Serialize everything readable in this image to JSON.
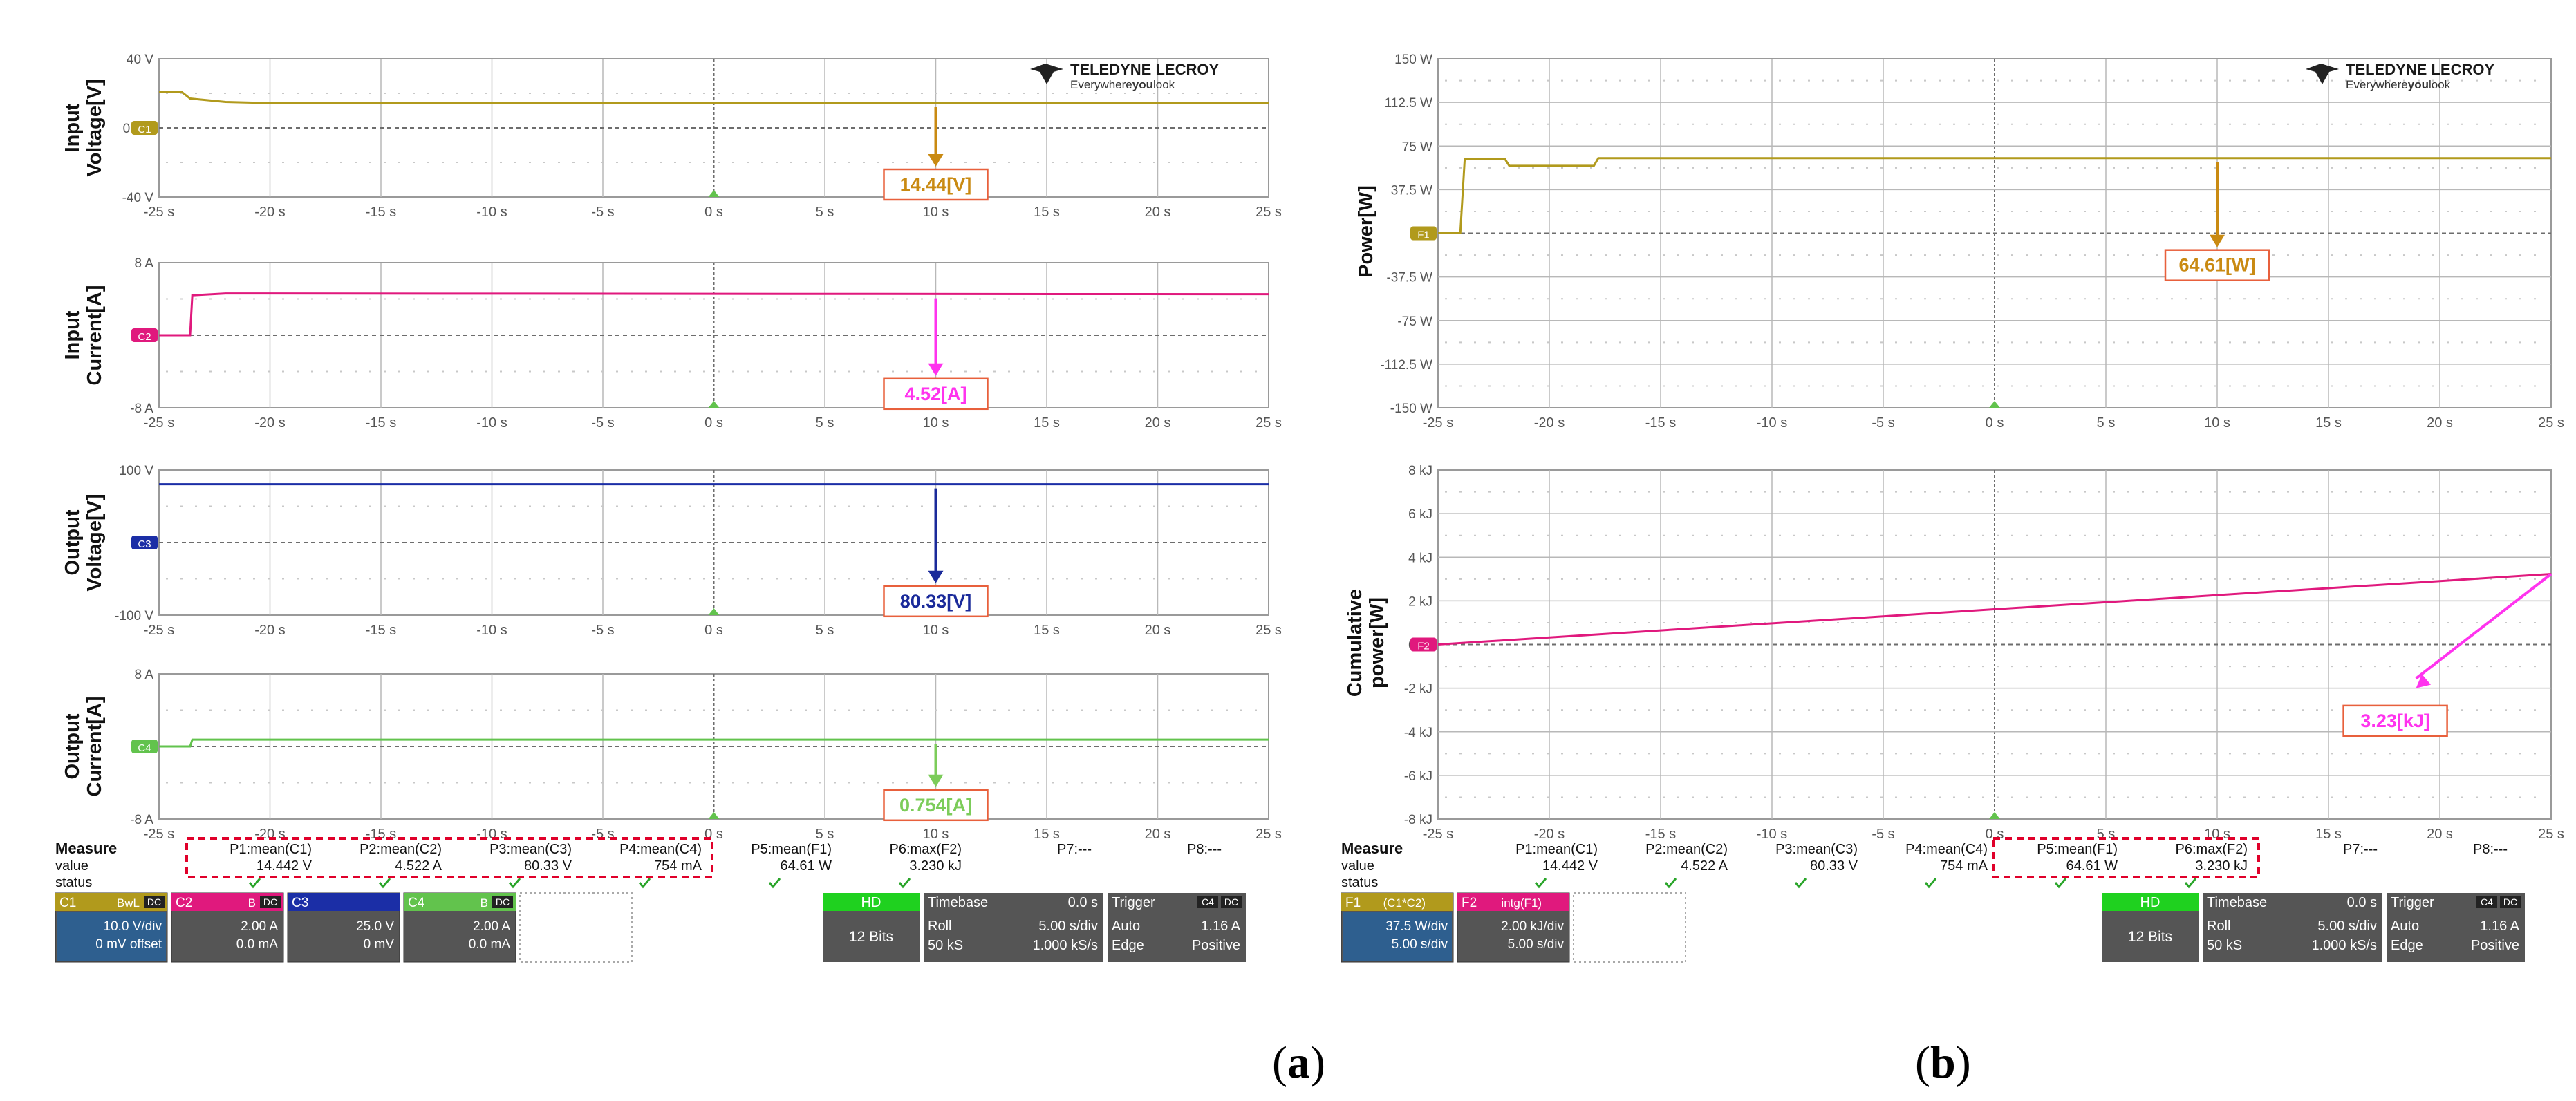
{
  "brand": {
    "name": "TELEDYNE LECROY",
    "tagline_a": "Everywhere",
    "tagline_b": "you",
    "tagline_c": "look"
  },
  "captions": {
    "a": "a",
    "b": "b"
  },
  "x_ticks": [
    "-25 s",
    "-20 s",
    "-15 s",
    "-10 s",
    "-5 s",
    "0 s",
    "5 s",
    "10 s",
    "15 s",
    "20 s",
    "25 s"
  ],
  "colors": {
    "c1": "#b19a1c",
    "c2": "#e0197d",
    "c3": "#1b2ea6",
    "c4": "#62c34d",
    "f1": "#b19a1c",
    "f2": "#e0197d",
    "arrow_v": "#c98a12",
    "arrow_i": "#ff33ee",
    "arrow_vo": "#1a2a9a",
    "arrow_io": "#7ccc5a",
    "box_border": "#e8603c",
    "grid": "#b8b8b8",
    "dotgrid": "#c8c8c8",
    "highlight": "#e0002a"
  },
  "chart_data": [
    {
      "panel": "a",
      "type": "line",
      "ylabel": "Input Voltage[V]",
      "y_ticks": [
        "40 V",
        "0 mV",
        "-40 V"
      ],
      "ylim": [
        -40,
        40
      ],
      "series": [
        {
          "channel": "C1",
          "x": [
            -25,
            -24,
            -23.6,
            -22,
            -20.5,
            -19,
            25
          ],
          "values": [
            21,
            21,
            17,
            15,
            14.5,
            14.4,
            14.4
          ]
        }
      ],
      "annotation": {
        "text": "14.44[V]",
        "x": 10
      }
    },
    {
      "panel": "a",
      "type": "line",
      "ylabel": "Input Current[A]",
      "y_ticks": [
        "8 A",
        "0 A",
        "-8 A"
      ],
      "ylim": [
        -8,
        8
      ],
      "series": [
        {
          "channel": "C2",
          "x": [
            -25,
            -23.6,
            -23.5,
            -22,
            25
          ],
          "values": [
            0,
            0,
            4.4,
            4.6,
            4.52
          ]
        }
      ],
      "annotation": {
        "text": "4.52[A]",
        "x": 10
      }
    },
    {
      "panel": "a",
      "type": "line",
      "ylabel": "Output Voltage[V]",
      "y_ticks": [
        "100 V",
        "0 V",
        "-100 V"
      ],
      "ylim": [
        -100,
        100
      ],
      "series": [
        {
          "channel": "C3",
          "x": [
            -25,
            25
          ],
          "values": [
            80.33,
            80.33
          ]
        }
      ],
      "annotation": {
        "text": "80.33[V]",
        "x": 10
      }
    },
    {
      "panel": "a",
      "type": "line",
      "ylabel": "Output Current[A]",
      "y_ticks": [
        "8 A",
        "0 A",
        "-8 A"
      ],
      "ylim": [
        -8,
        8
      ],
      "series": [
        {
          "channel": "C4",
          "x": [
            -25,
            -23.6,
            -23.5,
            25
          ],
          "values": [
            0,
            0,
            0.754,
            0.754
          ]
        }
      ],
      "annotation": {
        "text": "0.754[A]",
        "x": 10
      }
    },
    {
      "panel": "b",
      "type": "line",
      "ylabel": "Power[W]",
      "y_ticks": [
        "150 W",
        "112.5 W",
        "75 W",
        "37.5 W",
        "0 W",
        "-37.5 W",
        "-75 W",
        "-112.5 W",
        "-150 W"
      ],
      "ylim": [
        -150,
        150
      ],
      "series": [
        {
          "channel": "F1",
          "x": [
            -25,
            -24,
            -23.8,
            -22,
            -21.8,
            -18,
            -17.8,
            25
          ],
          "values": [
            0,
            0,
            64,
            64,
            58,
            58,
            64.6,
            64.6
          ]
        }
      ],
      "annotation": {
        "text": "64.61[W]",
        "x": 10
      }
    },
    {
      "panel": "b",
      "type": "line",
      "ylabel": "Cumulative power[W]",
      "y_ticks": [
        "8 kJ",
        "6 kJ",
        "4 kJ",
        "2 kJ",
        "0 kJ",
        "-2 kJ",
        "-4 kJ",
        "-6 kJ",
        "-8 kJ"
      ],
      "ylim": [
        -8,
        8
      ],
      "series": [
        {
          "channel": "F2",
          "x": [
            -25,
            25
          ],
          "values": [
            0,
            3.23
          ]
        }
      ],
      "annotation": {
        "text": "3.23[kJ]",
        "x": 18
      }
    }
  ],
  "measure": {
    "label": "Measure",
    "row_value": "value",
    "row_status": "status",
    "params": [
      "P1:mean(C1)",
      "P2:mean(C2)",
      "P3:mean(C3)",
      "P4:mean(C4)",
      "P5:mean(F1)",
      "P6:max(F2)",
      "P7:---",
      "P8:---"
    ],
    "values": [
      "14.442 V",
      "4.522 A",
      "80.33 V",
      "754 mA",
      "64.61 W",
      "3.230 kJ",
      "",
      ""
    ]
  },
  "channels_a": [
    {
      "name": "C1",
      "tag": "BwL",
      "coupling": "DC",
      "line1": "10.0 V/div",
      "line2": "0 mV offset"
    },
    {
      "name": "C2",
      "tag": "B",
      "coupling": "DC",
      "line1": "2.00 A",
      "line2": "0.0 mA"
    },
    {
      "name": "C3",
      "tag": "",
      "coupling": "",
      "line1": "25.0 V",
      "line2": "0 mV"
    },
    {
      "name": "C4",
      "tag": "B",
      "coupling": "DC",
      "line1": "2.00 A",
      "line2": "0.0 mA"
    }
  ],
  "channels_b": [
    {
      "name": "F1",
      "tag": "(C1*C2)",
      "coupling": "",
      "line1": "37.5 W/div",
      "line2": "5.00 s/div"
    },
    {
      "name": "F2",
      "tag": "intg(F1)",
      "coupling": "",
      "line1": "2.00 kJ/div",
      "line2": "5.00 s/div"
    }
  ],
  "hd": {
    "label": "HD",
    "bits": "12 Bits"
  },
  "timebase": {
    "label": "Timebase",
    "delay": "0.0 s",
    "mode": "Roll",
    "rate_div": "5.00 s/div",
    "samples": "50 kS",
    "rate": "1.000 kS/s"
  },
  "trigger": {
    "label": "Trigger",
    "ch": "C4",
    "coupling": "DC",
    "mode": "Auto",
    "level": "1.16 A",
    "type": "Edge",
    "slope": "Positive"
  }
}
